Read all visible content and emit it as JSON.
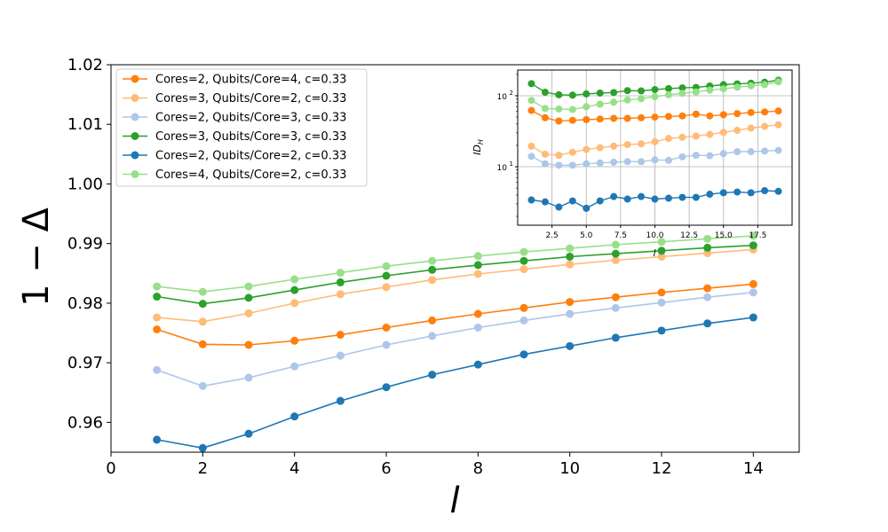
{
  "chart_data": [
    {
      "type": "line",
      "title": "",
      "xlabel": "l",
      "ylabel": "1 − Δ",
      "xlim": [
        0,
        15
      ],
      "ylim": [
        0.955,
        1.02
      ],
      "xticks": [
        0,
        2,
        4,
        6,
        8,
        10,
        12,
        14
      ],
      "yticks": [
        0.96,
        0.97,
        0.98,
        0.99,
        1.0,
        1.01,
        1.02
      ],
      "xtick_labels": [
        "0",
        "2",
        "4",
        "6",
        "8",
        "10",
        "12",
        "14"
      ],
      "ytick_labels": [
        "0.96",
        "0.97",
        "0.98",
        "0.99",
        "1.00",
        "1.01",
        "1.02"
      ],
      "grid": false,
      "legend_position": "top-left",
      "x": [
        1,
        2,
        3,
        4,
        5,
        6,
        7,
        8,
        9,
        10,
        11,
        12,
        13,
        14
      ],
      "series": [
        {
          "name": "Cores=2, Qubits/Core=4, c=0.33",
          "color": "#ff7f0e",
          "values": [
            0.9756,
            0.9731,
            0.973,
            0.9737,
            0.9747,
            0.9759,
            0.9771,
            0.9782,
            0.9792,
            0.9802,
            0.981,
            0.9818,
            0.9825,
            0.9832
          ]
        },
        {
          "name": "Cores=3, Qubits/Core=2, c=0.33",
          "color": "#ffbb78",
          "values": [
            0.9776,
            0.9769,
            0.9783,
            0.98,
            0.9815,
            0.9827,
            0.9839,
            0.9849,
            0.9857,
            0.9865,
            0.9872,
            0.9878,
            0.9884,
            0.989
          ]
        },
        {
          "name": "Cores=2, Qubits/Core=3, c=0.33",
          "color": "#aec7e8",
          "values": [
            0.9688,
            0.9661,
            0.9675,
            0.9694,
            0.9712,
            0.973,
            0.9745,
            0.9759,
            0.9771,
            0.9782,
            0.9792,
            0.9801,
            0.981,
            0.9818
          ]
        },
        {
          "name": "Cores=3, Qubits/Core=3, c=0.33",
          "color": "#2ca02c",
          "values": [
            0.9811,
            0.9799,
            0.9809,
            0.9822,
            0.9835,
            0.9846,
            0.9856,
            0.9864,
            0.9871,
            0.9878,
            0.9883,
            0.9888,
            0.9893,
            0.9897
          ]
        },
        {
          "name": "Cores=2, Qubits/Core=2, c=0.33",
          "color": "#1f77b4",
          "values": [
            0.9571,
            0.9557,
            0.9581,
            0.961,
            0.9636,
            0.9659,
            0.968,
            0.9697,
            0.9714,
            0.9728,
            0.9742,
            0.9754,
            0.9766,
            0.9776
          ]
        },
        {
          "name": "Cores=4, Qubits/Core=2, c=0.33",
          "color": "#98df8a",
          "values": [
            0.9828,
            0.9819,
            0.9828,
            0.984,
            0.9851,
            0.9862,
            0.9871,
            0.9879,
            0.9886,
            0.9892,
            0.9898,
            0.9903,
            0.9908,
            0.9913
          ]
        }
      ]
    },
    {
      "type": "line",
      "title": "",
      "xlabel": "l",
      "ylabel": "ID_H",
      "ylabel_main": "ID",
      "ylabel_sub": "H",
      "yscale": "log",
      "xlim": [
        0,
        20
      ],
      "ylim": [
        1.5,
        230
      ],
      "xticks": [
        2.5,
        5.0,
        7.5,
        10.0,
        12.5,
        15.0,
        17.5
      ],
      "xtick_labels": [
        "2.5",
        "5.0",
        "7.5",
        "10.0",
        "12.5",
        "15.0",
        "17.5"
      ],
      "yticks": [
        10,
        100
      ],
      "ytick_base": "10",
      "ytick_exponents": [
        "1",
        "2"
      ],
      "grid": true,
      "x": [
        1,
        2,
        3,
        4,
        5,
        6,
        7,
        8,
        9,
        10,
        11,
        12,
        13,
        14,
        15,
        16,
        17,
        18,
        19
      ],
      "series": [
        {
          "name": "Cores=3, Qubits/Core=3, c=0.33",
          "color": "#2ca02c",
          "values": [
            148,
            112,
            103,
            102,
            106,
            109,
            111,
            118,
            117,
            122,
            126,
            129,
            131,
            137,
            143,
            147,
            150,
            155,
            165
          ]
        },
        {
          "name": "Cores=4, Qubits/Core=2, c=0.33",
          "color": "#98df8a",
          "values": [
            86,
            66,
            65,
            64,
            70,
            76,
            81,
            87,
            91,
            97,
            103,
            108,
            113,
            120,
            125,
            132,
            138,
            143,
            157
          ]
        },
        {
          "name": "Cores=2, Qubits/Core=4, c=0.33",
          "color": "#ff7f0e",
          "values": [
            62,
            49,
            44,
            45,
            46,
            47,
            48,
            48,
            49,
            50,
            51,
            52,
            55,
            52,
            54,
            56,
            58,
            59,
            61
          ]
        },
        {
          "name": "Cores=3, Qubits/Core=2, c=0.33",
          "color": "#ffbb78",
          "values": [
            19.5,
            15,
            14.5,
            16,
            17.5,
            18.5,
            19.5,
            20.5,
            21,
            22.5,
            25,
            26,
            27,
            28.5,
            30.5,
            32.5,
            35,
            37,
            39
          ]
        },
        {
          "name": "Cores=2, Qubits/Core=3, c=0.33",
          "color": "#aec7e8",
          "values": [
            14,
            11,
            10.5,
            10.5,
            11,
            11.3,
            11.6,
            11.8,
            11.8,
            12.5,
            12.3,
            13.8,
            14.5,
            14.3,
            15.3,
            16.3,
            16.3,
            16.6,
            17
          ]
        },
        {
          "name": "Cores=2, Qubits/Core=2, c=0.33",
          "color": "#1f77b4",
          "values": [
            3.4,
            3.2,
            2.7,
            3.3,
            2.6,
            3.3,
            3.8,
            3.5,
            3.8,
            3.5,
            3.6,
            3.7,
            3.7,
            4.1,
            4.3,
            4.4,
            4.3,
            4.6,
            4.5
          ]
        }
      ]
    }
  ]
}
